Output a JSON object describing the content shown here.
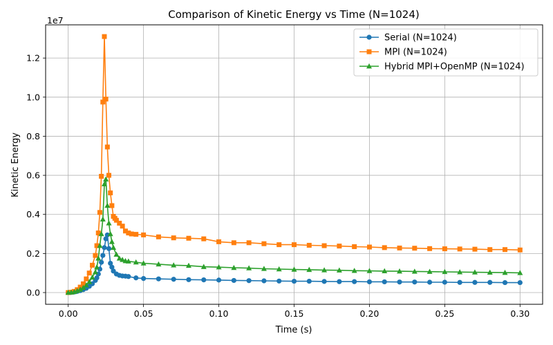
{
  "chart_data": {
    "type": "line",
    "title": "Comparison of Kinetic Energy vs Time (N=1024)",
    "xlabel": "Time (s)",
    "ylabel": "Kinetic Energy",
    "y_scale_label": "1e7",
    "xlim": [
      -0.015,
      0.315
    ],
    "ylim": [
      -0.6,
      13.7
    ],
    "y_unit_multiplier": 10000000,
    "x_ticks": [
      0.0,
      0.05,
      0.1,
      0.15,
      0.2,
      0.25,
      0.3
    ],
    "x_tick_labels": [
      "0.00",
      "0.05",
      "0.10",
      "0.15",
      "0.20",
      "0.25",
      "0.30"
    ],
    "y_ticks": [
      0.0,
      0.2,
      0.4,
      0.6,
      0.8,
      1.0,
      1.2
    ],
    "y_tick_labels": [
      "0.0",
      "0.2",
      "0.4",
      "0.6",
      "0.8",
      "1.0",
      "1.2"
    ],
    "grid": true,
    "legend_position": "top-right",
    "series": [
      {
        "name": "Serial (N=1024)",
        "color": "#1f77b4",
        "marker": "circle",
        "x": [
          0.0,
          0.002,
          0.004,
          0.006,
          0.008,
          0.01,
          0.012,
          0.014,
          0.016,
          0.018,
          0.019,
          0.02,
          0.021,
          0.022,
          0.023,
          0.024,
          0.025,
          0.026,
          0.027,
          0.028,
          0.029,
          0.03,
          0.032,
          0.034,
          0.036,
          0.038,
          0.04,
          0.045,
          0.05,
          0.06,
          0.07,
          0.08,
          0.09,
          0.1,
          0.11,
          0.12,
          0.13,
          0.14,
          0.15,
          0.16,
          0.17,
          0.18,
          0.19,
          0.2,
          0.21,
          0.22,
          0.23,
          0.24,
          0.25,
          0.26,
          0.27,
          0.28,
          0.29,
          0.3
        ],
        "y": [
          0.0,
          0.01,
          0.03,
          0.06,
          0.1,
          0.15,
          0.22,
          0.32,
          0.45,
          0.62,
          0.75,
          0.95,
          1.2,
          1.55,
          1.9,
          2.3,
          2.75,
          2.95,
          2.25,
          1.5,
          1.3,
          1.1,
          0.95,
          0.88,
          0.85,
          0.84,
          0.82,
          0.75,
          0.72,
          0.7,
          0.68,
          0.66,
          0.65,
          0.64,
          0.62,
          0.61,
          0.6,
          0.59,
          0.58,
          0.58,
          0.57,
          0.56,
          0.56,
          0.55,
          0.55,
          0.54,
          0.54,
          0.53,
          0.53,
          0.52,
          0.52,
          0.52,
          0.51,
          0.51
        ]
      },
      {
        "name": "MPI (N=1024)",
        "color": "#ff7f0e",
        "marker": "square",
        "x": [
          0.0,
          0.002,
          0.004,
          0.006,
          0.008,
          0.01,
          0.012,
          0.014,
          0.016,
          0.018,
          0.019,
          0.02,
          0.021,
          0.022,
          0.023,
          0.024,
          0.025,
          0.026,
          0.027,
          0.028,
          0.029,
          0.03,
          0.031,
          0.032,
          0.034,
          0.036,
          0.038,
          0.04,
          0.042,
          0.045,
          0.05,
          0.06,
          0.07,
          0.08,
          0.09,
          0.1,
          0.11,
          0.12,
          0.13,
          0.14,
          0.15,
          0.16,
          0.17,
          0.18,
          0.19,
          0.2,
          0.21,
          0.22,
          0.23,
          0.24,
          0.25,
          0.26,
          0.27,
          0.28,
          0.29,
          0.3
        ],
        "y": [
          0.0,
          0.02,
          0.06,
          0.15,
          0.28,
          0.45,
          0.7,
          1.0,
          1.4,
          1.9,
          2.4,
          3.05,
          4.1,
          5.95,
          9.75,
          13.1,
          9.9,
          7.45,
          6.0,
          5.1,
          4.45,
          3.9,
          3.8,
          3.7,
          3.55,
          3.4,
          3.15,
          3.05,
          3.0,
          2.98,
          2.95,
          2.85,
          2.8,
          2.78,
          2.75,
          2.6,
          2.55,
          2.55,
          2.5,
          2.45,
          2.45,
          2.42,
          2.4,
          2.38,
          2.35,
          2.33,
          2.3,
          2.28,
          2.27,
          2.25,
          2.24,
          2.23,
          2.22,
          2.2,
          2.2,
          2.18
        ]
      },
      {
        "name": "Hybrid MPI+OpenMP (N=1024)",
        "color": "#2ca02c",
        "marker": "triangle",
        "x": [
          0.0,
          0.002,
          0.004,
          0.006,
          0.008,
          0.01,
          0.012,
          0.014,
          0.016,
          0.018,
          0.019,
          0.02,
          0.021,
          0.022,
          0.023,
          0.024,
          0.025,
          0.026,
          0.027,
          0.028,
          0.029,
          0.03,
          0.032,
          0.034,
          0.036,
          0.038,
          0.04,
          0.045,
          0.05,
          0.06,
          0.07,
          0.08,
          0.09,
          0.1,
          0.11,
          0.12,
          0.13,
          0.14,
          0.15,
          0.16,
          0.17,
          0.18,
          0.19,
          0.2,
          0.21,
          0.22,
          0.23,
          0.24,
          0.25,
          0.26,
          0.27,
          0.28,
          0.29,
          0.3
        ],
        "y": [
          0.0,
          0.01,
          0.04,
          0.09,
          0.16,
          0.25,
          0.38,
          0.55,
          0.78,
          1.05,
          1.3,
          1.75,
          2.4,
          3.0,
          3.75,
          5.55,
          5.8,
          4.45,
          3.55,
          3.0,
          2.6,
          2.3,
          1.95,
          1.75,
          1.68,
          1.62,
          1.6,
          1.55,
          1.5,
          1.45,
          1.4,
          1.38,
          1.32,
          1.3,
          1.27,
          1.25,
          1.22,
          1.2,
          1.18,
          1.17,
          1.15,
          1.14,
          1.12,
          1.11,
          1.1,
          1.09,
          1.08,
          1.07,
          1.06,
          1.05,
          1.04,
          1.03,
          1.02,
          1.01
        ]
      }
    ]
  }
}
